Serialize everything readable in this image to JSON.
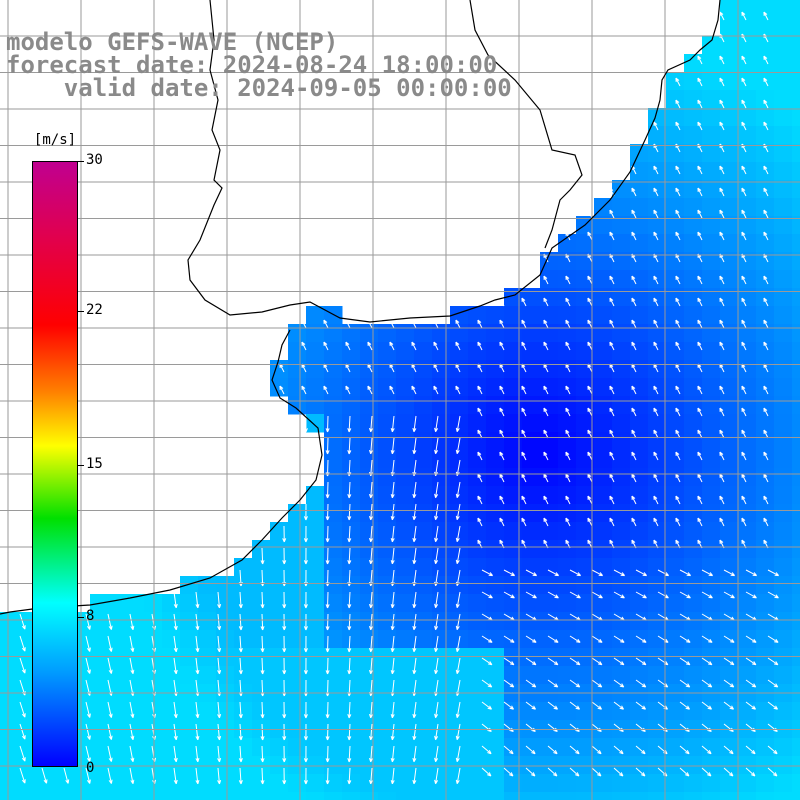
{
  "title": {
    "line1": "modelo GEFS-WAVE (NCEP)",
    "line2": "forecast date: 2024-08-24 18:00:00",
    "line3": "    valid date: 2024-09-05 00:00:00"
  },
  "colorbar": {
    "unit": "[m/s]",
    "ticks": [
      "30",
      "22",
      "15",
      "8",
      "0"
    ],
    "range": [
      0,
      30
    ],
    "colormap": [
      "#0000ff",
      "#00a0ff",
      "#00ffff",
      "#00e000",
      "#ffff00",
      "#ff8000",
      "#ff0000",
      "#c00090"
    ]
  },
  "map": {
    "land_color": "#ffffff",
    "coast_color": "#000000",
    "grid_color": "#9a9a9a",
    "grid": true,
    "field": "wind speed [m/s] with direction arrows",
    "region": "Río de la Plata / Uruguay / southern Brazil coast"
  }
}
